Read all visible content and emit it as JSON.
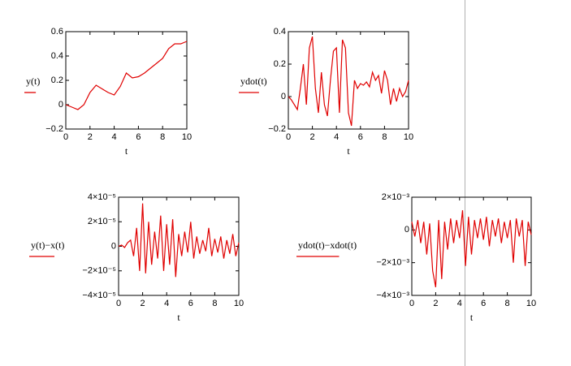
{
  "chart_data": [
    {
      "type": "line",
      "y_label": "y(t)",
      "x_label": "t",
      "color": "#e00000",
      "xlim": [
        0,
        10
      ],
      "xticks": [
        0,
        2,
        4,
        6,
        8,
        10
      ],
      "ylim": [
        -0.2,
        0.6
      ],
      "yticks": [
        {
          "value": -0.2,
          "label": "−0.2"
        },
        0,
        0.2,
        0.4,
        0.6
      ],
      "x": [
        0,
        0.5,
        1,
        1.5,
        2,
        2.5,
        3,
        3.5,
        4,
        4.5,
        5,
        5.5,
        6,
        6.5,
        7,
        7.5,
        8,
        8.5,
        9,
        9.5,
        10
      ],
      "values": [
        0,
        -0.02,
        -0.04,
        0.0,
        0.1,
        0.16,
        0.13,
        0.1,
        0.08,
        0.15,
        0.26,
        0.22,
        0.23,
        0.26,
        0.3,
        0.34,
        0.38,
        0.46,
        0.5,
        0.5,
        0.52
      ]
    },
    {
      "type": "line",
      "y_label": "ydot(t)",
      "x_label": "t",
      "color": "#e00000",
      "xlim": [
        0,
        10
      ],
      "xticks": [
        0,
        2,
        4,
        6,
        8,
        10
      ],
      "ylim": [
        -0.2,
        0.4
      ],
      "yticks": [
        {
          "value": -0.2,
          "label": "−0.2"
        },
        0,
        0.2,
        0.4
      ],
      "x": [
        0,
        0.25,
        0.5,
        0.75,
        1,
        1.25,
        1.5,
        1.75,
        2,
        2.25,
        2.5,
        2.75,
        3,
        3.25,
        3.5,
        3.75,
        4,
        4.25,
        4.5,
        4.75,
        5,
        5.25,
        5.5,
        5.75,
        6,
        6.25,
        6.5,
        6.75,
        7,
        7.25,
        7.5,
        7.75,
        8,
        8.25,
        8.5,
        8.75,
        9,
        9.25,
        9.5,
        9.75,
        10
      ],
      "values": [
        0,
        -0.02,
        -0.05,
        -0.08,
        0.05,
        0.2,
        -0.05,
        0.3,
        0.37,
        0.05,
        -0.1,
        0.15,
        -0.05,
        -0.12,
        0.1,
        0.28,
        0.3,
        -0.1,
        0.35,
        0.3,
        -0.1,
        -0.18,
        0.1,
        0.05,
        0.08,
        0.07,
        0.09,
        0.06,
        0.15,
        0.1,
        0.13,
        0.02,
        0.16,
        0.1,
        -0.05,
        0.05,
        -0.03,
        0.05,
        0.0,
        0.03,
        0.1
      ]
    },
    {
      "type": "line",
      "y_label": "y(t)−x(t)",
      "x_label": "t",
      "color": "#e00000",
      "xlim": [
        0,
        10
      ],
      "xticks": [
        0,
        2,
        4,
        6,
        8,
        10
      ],
      "ylim": [
        -4e-05,
        4e-05
      ],
      "yticks": [
        {
          "value": -4e-05,
          "label": "−4×10⁻⁵"
        },
        {
          "value": -2e-05,
          "label": "−2×10⁻⁵"
        },
        0,
        {
          "value": 2e-05,
          "label": "2×10⁻⁵"
        },
        {
          "value": 4e-05,
          "label": "4×10⁻⁵"
        }
      ],
      "x": [
        0,
        0.25,
        0.5,
        0.75,
        1,
        1.25,
        1.5,
        1.75,
        2,
        2.25,
        2.5,
        2.75,
        3,
        3.25,
        3.5,
        3.75,
        4,
        4.25,
        4.5,
        4.75,
        5,
        5.25,
        5.5,
        5.75,
        6,
        6.25,
        6.5,
        6.75,
        7,
        7.25,
        7.5,
        7.75,
        8,
        8.25,
        8.5,
        8.75,
        9,
        9.25,
        9.5,
        9.75,
        10
      ],
      "values": [
        0,
        1e-06,
        -1e-06,
        3e-06,
        5e-06,
        -8e-06,
        1.5e-05,
        -2e-05,
        3.5e-05,
        -2.2e-05,
        2e-05,
        -1.5e-05,
        1.2e-05,
        -1e-05,
        2.5e-05,
        -2e-05,
        1.8e-05,
        -1.5e-05,
        2.2e-05,
        -2.5e-05,
        1e-05,
        -8e-06,
        1.2e-05,
        -5e-06,
        2e-05,
        -1e-05,
        8e-06,
        -6e-06,
        5e-06,
        -4e-06,
        1.5e-05,
        -8e-06,
        6e-06,
        -5e-06,
        8e-06,
        -1e-05,
        5e-06,
        -6e-06,
        1e-05,
        -8e-06,
        3e-06
      ]
    },
    {
      "type": "line",
      "y_label": "ydot(t)−xdot(t)",
      "x_label": "t",
      "color": "#e00000",
      "xlim": [
        0,
        10
      ],
      "xticks": [
        0,
        2,
        4,
        6,
        8,
        10
      ],
      "ylim": [
        -0.004,
        0.002
      ],
      "yticks": [
        {
          "value": -0.004,
          "label": "−4×10⁻³"
        },
        {
          "value": -0.002,
          "label": "−2×10⁻³"
        },
        0,
        {
          "value": 0.002,
          "label": "2×10⁻³"
        }
      ],
      "x": [
        0,
        0.25,
        0.5,
        0.75,
        1,
        1.25,
        1.5,
        1.75,
        2,
        2.25,
        2.5,
        2.75,
        3,
        3.25,
        3.5,
        3.75,
        4,
        4.25,
        4.5,
        4.75,
        5,
        5.25,
        5.5,
        5.75,
        6,
        6.25,
        6.5,
        6.75,
        7,
        7.25,
        7.5,
        7.75,
        8,
        8.25,
        8.5,
        8.75,
        9,
        9.25,
        9.5,
        9.75,
        10
      ],
      "values": [
        0.0005,
        -0.0004,
        0.0006,
        -0.0008,
        0.0005,
        -0.0015,
        0.0004,
        -0.0025,
        -0.0035,
        0.0006,
        -0.003,
        0.0005,
        -0.0012,
        0.0007,
        -0.0008,
        0.0006,
        -0.0005,
        0.0012,
        -0.0022,
        0.0008,
        -0.0015,
        0.0006,
        -0.0005,
        0.0007,
        -0.0006,
        0.0008,
        -0.001,
        0.0006,
        -0.0004,
        0.0007,
        -0.0008,
        0.0005,
        -0.0005,
        0.0006,
        -0.002,
        0.0007,
        -0.0004,
        0.0006,
        -0.0022,
        0.0005,
        -0.0003
      ]
    }
  ]
}
